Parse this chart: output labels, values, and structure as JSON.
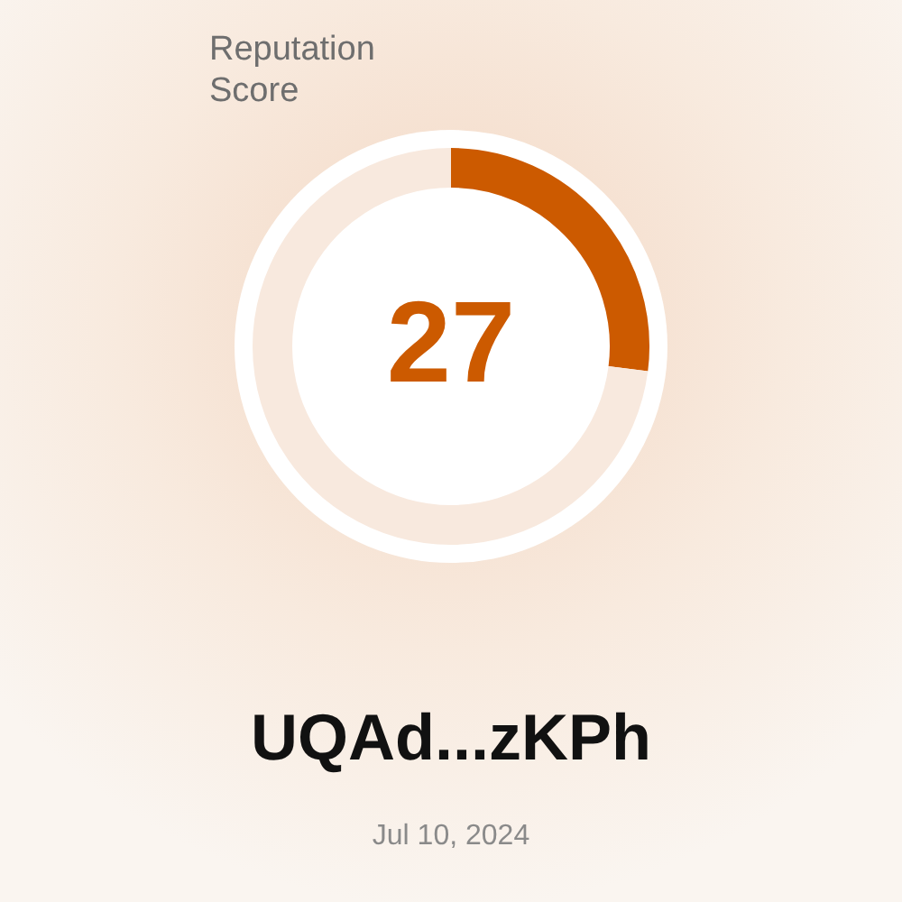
{
  "chart_data": {
    "type": "donut",
    "title": "Reputation Score",
    "categories": [
      null,
      null
    ],
    "values": [
      27,
      73
    ],
    "colors": [
      "#cc5a00",
      "#f8e9de"
    ],
    "value_labels": [
      "27",
      null
    ],
    "annotations": [
      "UQAd...zKPh",
      "Jul 10, 2024"
    ]
  }
}
